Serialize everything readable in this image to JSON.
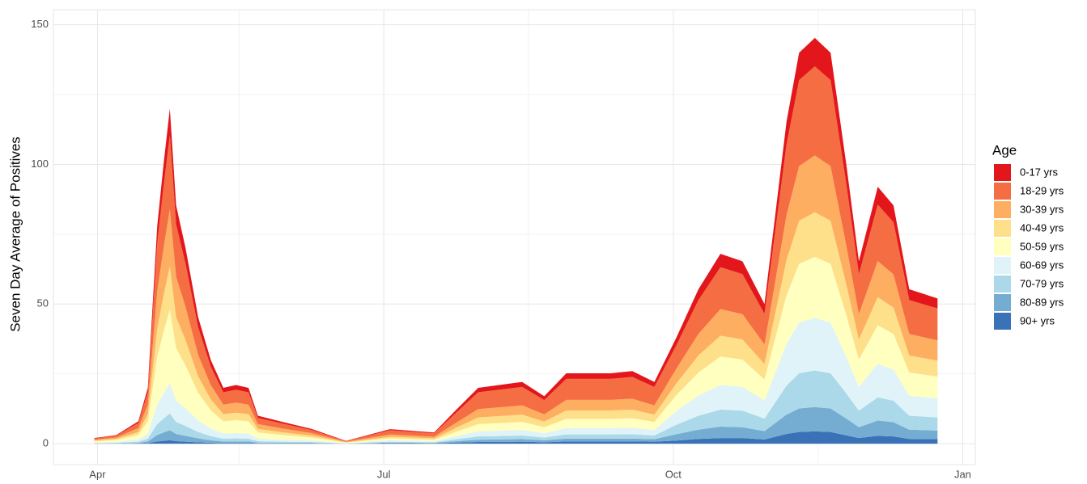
{
  "chart_data": {
    "type": "stacked_area",
    "y_label": "Seven Day Average of Positives",
    "legend_title": "Age",
    "legend": "right",
    "grid": true,
    "xlim": [
      78,
      371
    ],
    "xticks": [
      {
        "value": 92,
        "label": "Apr"
      },
      {
        "value": 183,
        "label": "Jul"
      },
      {
        "value": 275,
        "label": "Oct"
      },
      {
        "value": 367,
        "label": "Jan"
      }
    ],
    "x_minor_ticks": [
      137,
      229,
      321
    ],
    "ylim": [
      -7.5,
      155.4
    ],
    "yticks": [
      0,
      50,
      100,
      150
    ],
    "y_minor_ticks": [
      25,
      75,
      125
    ],
    "x": [
      91,
      98,
      105,
      108,
      111,
      113,
      115,
      117,
      120,
      124,
      128,
      132,
      136,
      140,
      143,
      150,
      160,
      171,
      185,
      199,
      206,
      213,
      227,
      234,
      241,
      255,
      262,
      269,
      276,
      283,
      290,
      297,
      304,
      311,
      315,
      320,
      325,
      330,
      334,
      340,
      345,
      350,
      359
    ],
    "series": [
      {
        "name": "0-17 yrs",
        "color": "#e3171b",
        "values": [
          0.2,
          0.2,
          0.6,
          1.6,
          6.2,
          8,
          9.6,
          6.8,
          5.6,
          3.6,
          2.4,
          1.6,
          1.7,
          1.6,
          0.8,
          0.6,
          0.4,
          0.1,
          0.4,
          0.3,
          1,
          1.6,
          1.8,
          1.4,
          2,
          2,
          2.1,
          1.8,
          2.7,
          3.9,
          4.8,
          4.6,
          3.5,
          8.1,
          9.8,
          10.2,
          9.8,
          7,
          4.6,
          6.4,
          6,
          3.9,
          3.6
        ]
      },
      {
        "name": "18-29 yrs",
        "color": "#f46d43",
        "values": [
          0.4,
          0.7,
          1.8,
          4.4,
          17.2,
          22,
          26.4,
          18.7,
          15.4,
          9.9,
          6.6,
          4.4,
          4.6,
          4.4,
          2.2,
          1.8,
          1.1,
          0.2,
          1.5,
          1.2,
          3.6,
          6,
          6.6,
          5.1,
          7.5,
          7.5,
          7.8,
          6.6,
          8.4,
          12.1,
          15,
          14.3,
          11,
          25.3,
          30.8,
          31.9,
          30.8,
          22,
          14.3,
          20.2,
          18.7,
          12.1,
          11.4
        ]
      },
      {
        "name": "30-39 yrs",
        "color": "#fdae61",
        "values": [
          0.3,
          0.5,
          1.4,
          3.4,
          13.3,
          17,
          20.4,
          14.5,
          11.9,
          7.7,
          5.1,
          3.4,
          3.6,
          3.4,
          1.7,
          1.4,
          0.9,
          0.2,
          0.8,
          0.6,
          1.8,
          3,
          3.3,
          2.6,
          3.8,
          3.8,
          3.9,
          3.3,
          5.3,
          7.7,
          9.5,
          9.1,
          7,
          16.1,
          19.6,
          20.3,
          19.6,
          14,
          9.1,
          12.9,
          11.9,
          7.7,
          7.3
        ]
      },
      {
        "name": "40-49 yrs",
        "color": "#fee08b",
        "values": [
          0.3,
          0.4,
          1,
          2.6,
          10.1,
          13,
          15.6,
          11.1,
          9.1,
          5.9,
          3.9,
          2.6,
          2.7,
          2.6,
          1.3,
          1,
          0.7,
          0.1,
          0.6,
          0.5,
          1.4,
          2.4,
          2.6,
          2,
          3,
          3,
          3.1,
          2.6,
          4.2,
          6.1,
          7.5,
          7.2,
          5.5,
          12.7,
          15.4,
          16,
          15.4,
          11,
          7.2,
          10.1,
          9.4,
          6.1,
          5.7
        ]
      },
      {
        "name": "50-59 yrs",
        "color": "#ffffbf",
        "values": [
          0.4,
          0.7,
          1.8,
          4.4,
          17.2,
          22,
          26.4,
          18.7,
          15.4,
          9.9,
          6.6,
          4.4,
          4.6,
          4.4,
          2.2,
          1.8,
          1.1,
          0.2,
          0.7,
          0.5,
          1.6,
          2.6,
          2.9,
          2.2,
          3.3,
          3.3,
          3.4,
          2.9,
          5.7,
          8.3,
          10.2,
          9.8,
          7.5,
          17.3,
          21,
          21.8,
          21,
          15,
          9.8,
          13.8,
          12.8,
          8.3,
          7.8
        ]
      },
      {
        "name": "60-69 yrs",
        "color": "#e0f3f8",
        "values": [
          0.2,
          0.3,
          0.7,
          1.8,
          7,
          9,
          10.8,
          7.7,
          6.3,
          4.1,
          2.7,
          1.8,
          1.9,
          1.8,
          0.9,
          0.7,
          0.5,
          0.1,
          0.5,
          0.4,
          1.1,
          1.8,
          2,
          1.5,
          2.3,
          2.3,
          2.3,
          2,
          4.9,
          7.2,
          8.8,
          8.5,
          6.5,
          15,
          18.2,
          18.9,
          18.2,
          13,
          8.5,
          12,
          11.1,
          7.2,
          6.8
        ]
      },
      {
        "name": "70-79 yrs",
        "color": "#abd9e9",
        "values": [
          0.1,
          0.2,
          0.4,
          1,
          3.9,
          5,
          6,
          4.3,
          3.5,
          2.3,
          1.5,
          1,
          1.1,
          1,
          0.5,
          0.4,
          0.3,
          0.1,
          0.3,
          0.2,
          0.7,
          1.2,
          1.3,
          1,
          1.5,
          1.5,
          1.6,
          1.3,
          3.4,
          5,
          6.1,
          5.9,
          4.5,
          10.4,
          12.6,
          13.1,
          12.6,
          9,
          5.9,
          8.3,
          7.7,
          5,
          4.7
        ]
      },
      {
        "name": "80-89 yrs",
        "color": "#74add1",
        "values": [
          0.1,
          0.1,
          0.2,
          0.6,
          2.3,
          3,
          3.6,
          2.6,
          2.1,
          1.4,
          0.9,
          0.6,
          0.6,
          0.6,
          0.3,
          0.2,
          0.2,
          0,
          0.2,
          0.2,
          0.5,
          0.8,
          0.9,
          0.7,
          1,
          1,
          1,
          0.9,
          2.3,
          3.3,
          4.1,
          3.9,
          3,
          6.9,
          8.4,
          8.7,
          8.4,
          6,
          3.9,
          5.5,
          5.1,
          3.3,
          3.1
        ]
      },
      {
        "name": "90+ yrs",
        "color": "#3a72b8",
        "values": [
          0,
          0,
          0.1,
          0.2,
          0.8,
          1,
          1.2,
          0.9,
          0.7,
          0.5,
          0.3,
          0.2,
          0.2,
          0.2,
          0.1,
          0.1,
          0.1,
          0,
          0.2,
          0.1,
          0.4,
          0.6,
          0.7,
          0.5,
          0.8,
          0.8,
          0.8,
          0.7,
          1.1,
          1.7,
          2,
          2,
          1.5,
          3.5,
          4.2,
          4.4,
          4.2,
          3,
          2,
          2.8,
          2.6,
          1.7,
          1.6
        ]
      }
    ]
  }
}
